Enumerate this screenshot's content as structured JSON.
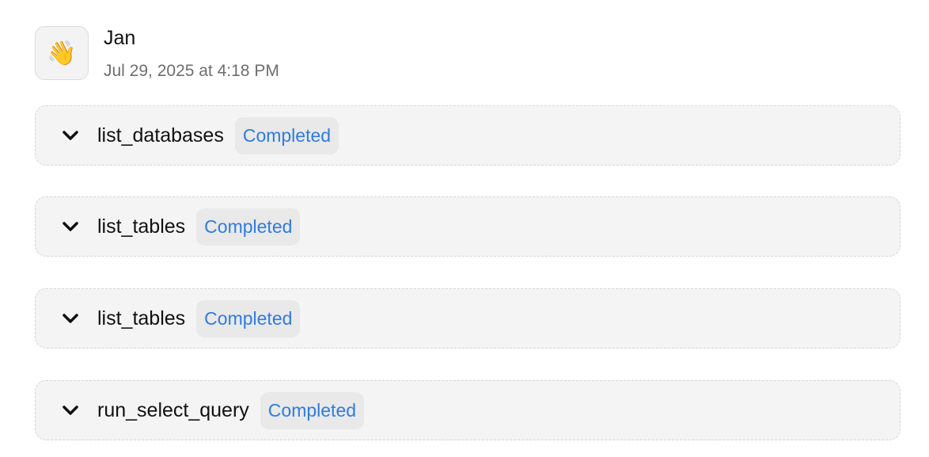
{
  "message": {
    "avatar_icon": "waving-hand-icon",
    "avatar_glyph": "👋",
    "author": "Jan",
    "timestamp": "Jul 29, 2025 at 4:18 PM"
  },
  "tool_calls": [
    {
      "name": "list_databases",
      "status": "Completed"
    },
    {
      "name": "list_tables",
      "status": "Completed"
    },
    {
      "name": "list_tables",
      "status": "Completed"
    },
    {
      "name": "run_select_query",
      "status": "Completed"
    }
  ],
  "colors": {
    "status_completed": "#2f7be0",
    "card_bg": "#f4f4f4",
    "badge_bg": "#e9e9e9"
  }
}
